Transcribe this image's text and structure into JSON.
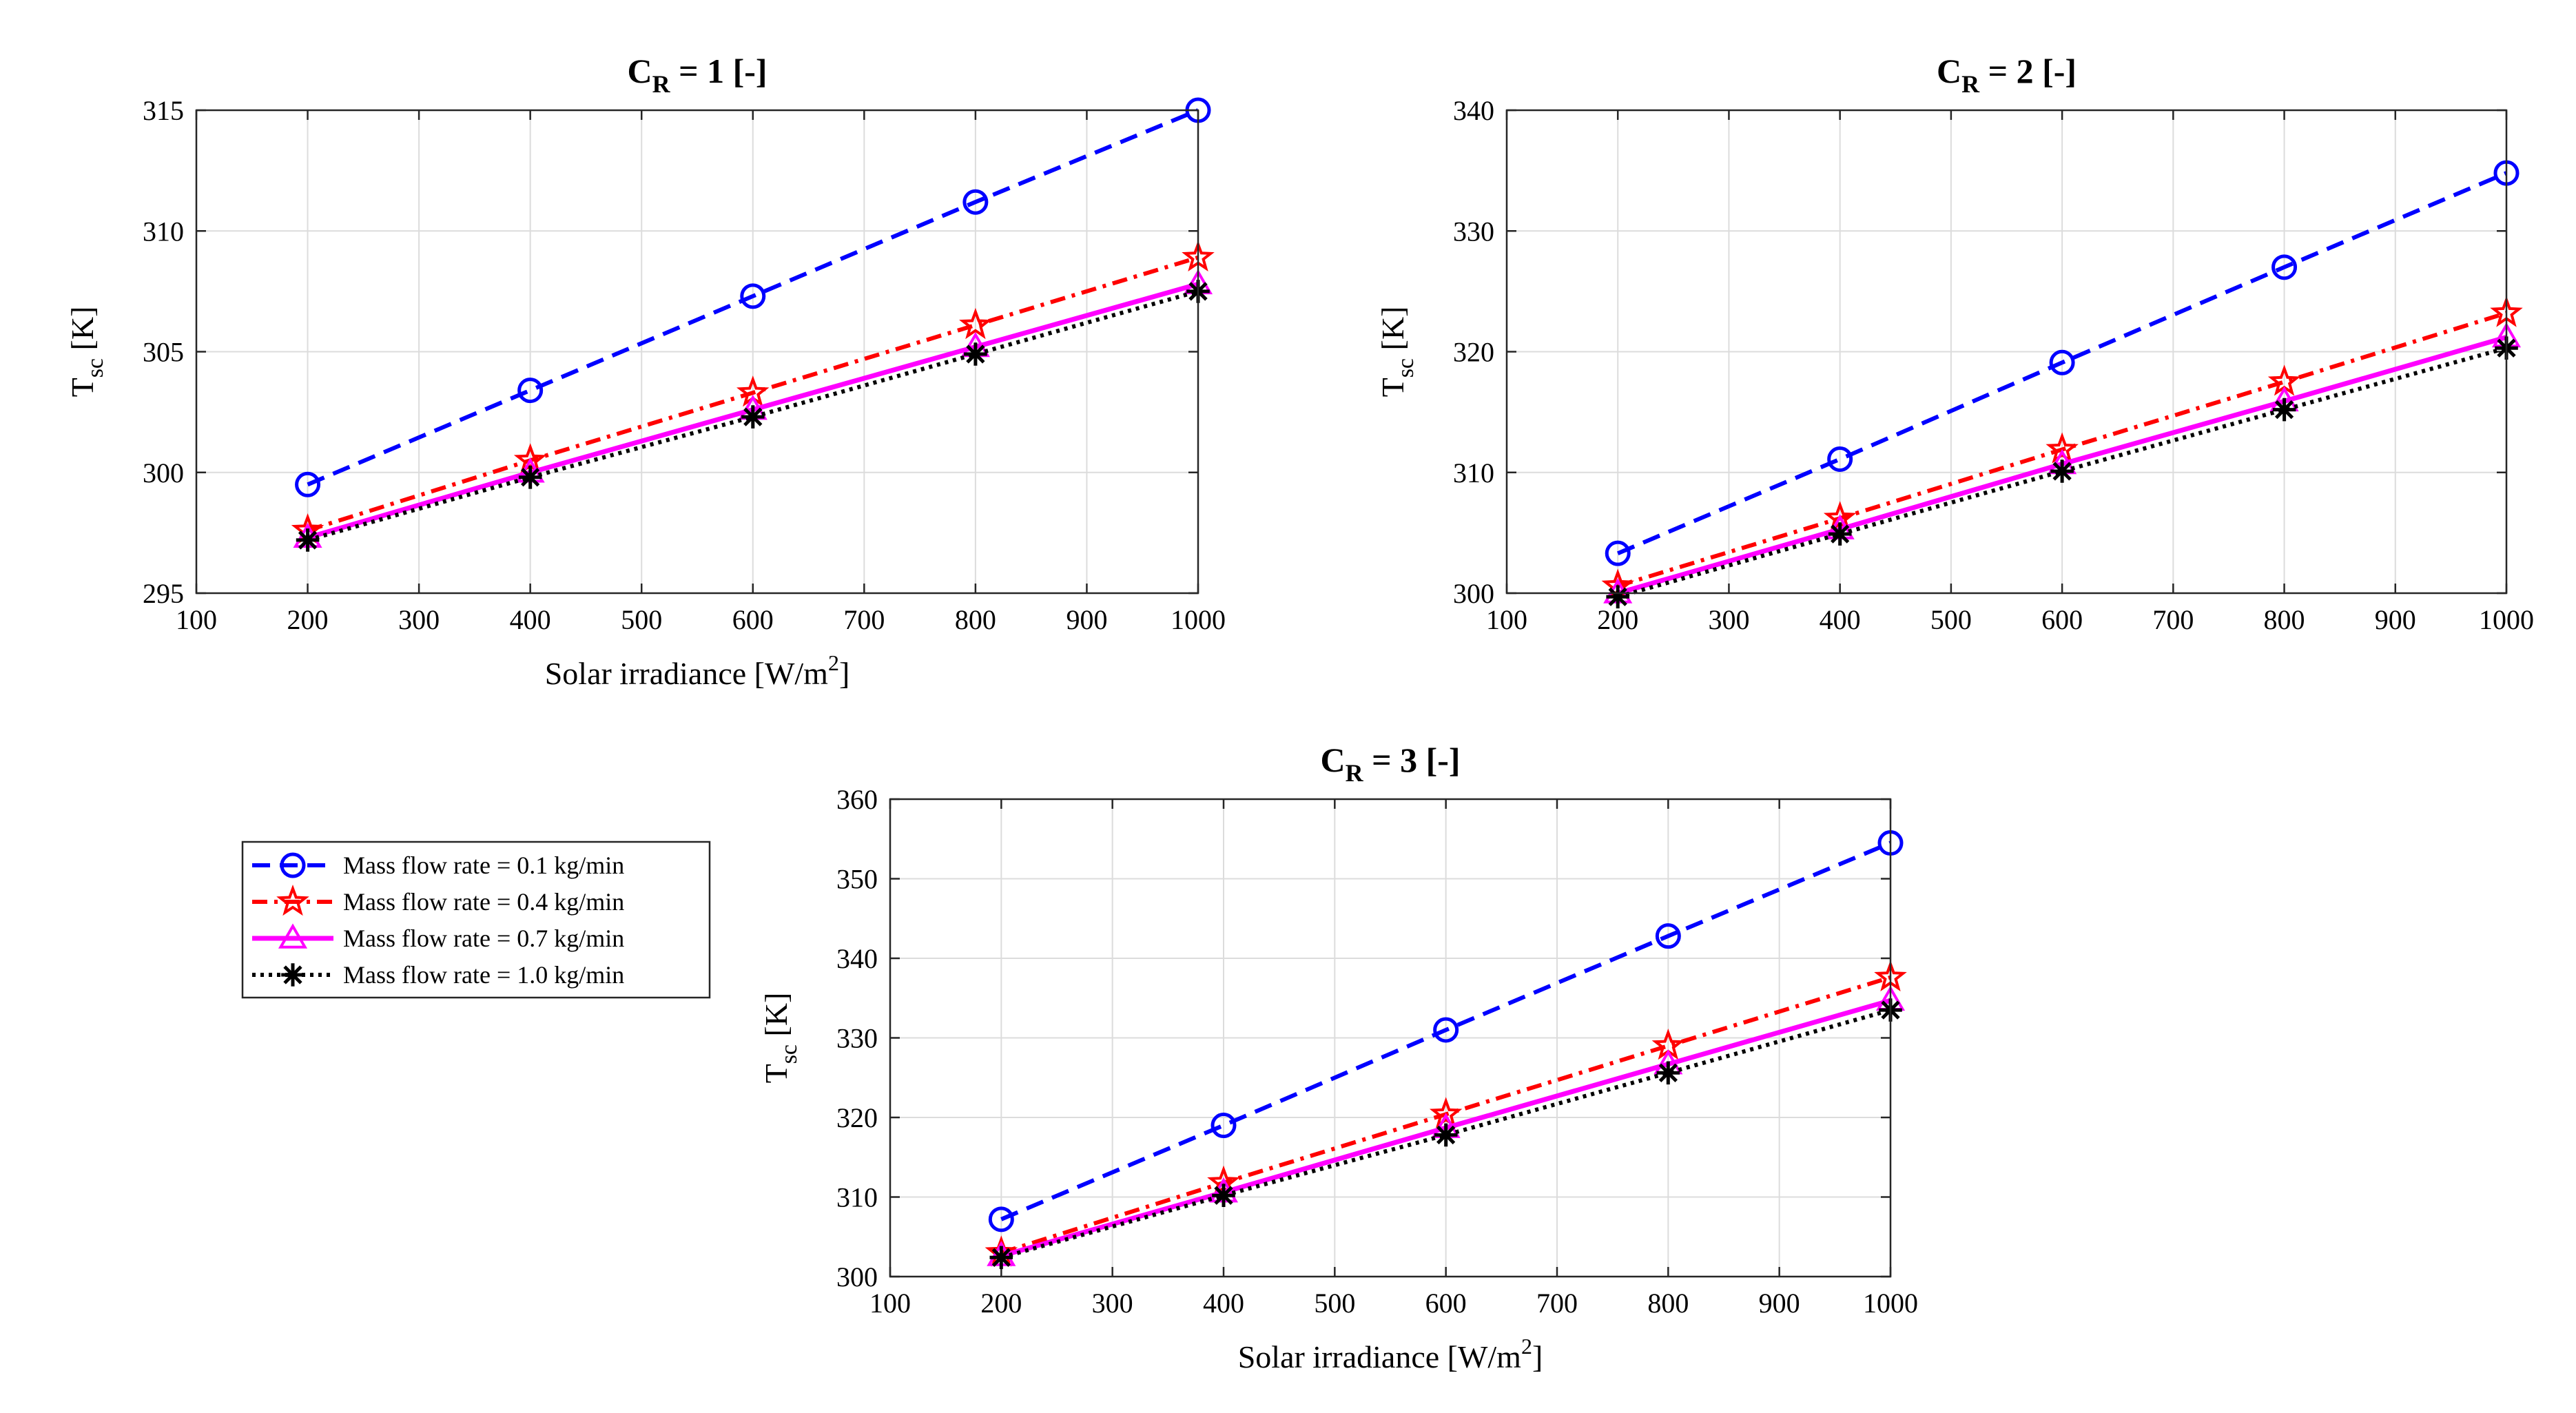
{
  "chart_data": [
    {
      "type": "line",
      "title": {
        "main": "C",
        "sub": "R",
        "rest": " = 1 [-]"
      },
      "xlabel": {
        "main": "Solar irradiance [W/m",
        "sup": "2",
        "rest": "]"
      },
      "ylabel": {
        "main": "T",
        "sub": "sc",
        "rest": " [K]"
      },
      "xlim": [
        100,
        1000
      ],
      "ylim": [
        295,
        315
      ],
      "xticks": [
        100,
        200,
        300,
        400,
        500,
        600,
        700,
        800,
        900,
        1000
      ],
      "yticks": [
        295,
        300,
        305,
        310,
        315
      ],
      "grid": true,
      "x": [
        200,
        400,
        600,
        800,
        1000
      ],
      "series": [
        {
          "name": "Mass flow rate = 0.1 kg/min",
          "values": [
            299.5,
            303.4,
            307.3,
            311.2,
            315.0
          ]
        },
        {
          "name": "Mass flow rate = 0.4 kg/min",
          "values": [
            297.6,
            300.5,
            303.3,
            306.1,
            308.9
          ]
        },
        {
          "name": "Mass flow rate = 0.7 kg/min",
          "values": [
            297.3,
            300.0,
            302.6,
            305.2,
            307.8
          ]
        },
        {
          "name": "Mass flow rate = 1.0 kg/min",
          "values": [
            297.2,
            299.8,
            302.3,
            304.9,
            307.5
          ]
        }
      ]
    },
    {
      "type": "line",
      "title": {
        "main": "C",
        "sub": "R",
        "rest": " = 2 [-]"
      },
      "xlabel": {
        "main": "",
        "sup": "",
        "rest": ""
      },
      "ylabel": {
        "main": "T",
        "sub": "sc",
        "rest": " [K]"
      },
      "xlim": [
        100,
        1000
      ],
      "ylim": [
        300,
        340
      ],
      "xticks": [
        100,
        200,
        300,
        400,
        500,
        600,
        700,
        800,
        900,
        1000
      ],
      "yticks": [
        300,
        310,
        320,
        330,
        340
      ],
      "grid": true,
      "x": [
        200,
        400,
        600,
        800,
        1000
      ],
      "series": [
        {
          "name": "Mass flow rate = 0.1 kg/min",
          "values": [
            303.3,
            311.1,
            319.1,
            327.0,
            334.8
          ]
        },
        {
          "name": "Mass flow rate = 0.4 kg/min",
          "values": [
            300.6,
            306.2,
            311.9,
            317.5,
            323.2
          ]
        },
        {
          "name": "Mass flow rate = 0.7 kg/min",
          "values": [
            300.0,
            305.3,
            310.7,
            315.9,
            321.2
          ]
        },
        {
          "name": "Mass flow rate = 1.0 kg/min",
          "values": [
            299.7,
            304.9,
            310.1,
            315.2,
            320.3
          ]
        }
      ]
    },
    {
      "type": "line",
      "title": {
        "main": "C",
        "sub": "R",
        "rest": " = 3 [-]"
      },
      "xlabel": {
        "main": "Solar irradiance [W/m",
        "sup": "2",
        "rest": "]"
      },
      "ylabel": {
        "main": "T",
        "sub": "sc",
        "rest": " [K]"
      },
      "xlim": [
        100,
        1000
      ],
      "ylim": [
        300,
        360
      ],
      "xticks": [
        100,
        200,
        300,
        400,
        500,
        600,
        700,
        800,
        900,
        1000
      ],
      "yticks": [
        300,
        310,
        320,
        330,
        340,
        350,
        360
      ],
      "grid": true,
      "x": [
        200,
        400,
        600,
        800,
        1000
      ],
      "series": [
        {
          "name": "Mass flow rate = 0.1 kg/min",
          "values": [
            307.2,
            319.0,
            331.0,
            342.8,
            354.5
          ]
        },
        {
          "name": "Mass flow rate = 0.4 kg/min",
          "values": [
            303.0,
            311.8,
            320.4,
            329.0,
            337.6
          ]
        },
        {
          "name": "Mass flow rate = 0.7 kg/min",
          "values": [
            302.6,
            310.6,
            318.7,
            326.7,
            334.7
          ]
        },
        {
          "name": "Mass flow rate = 1.0 kg/min",
          "values": [
            302.4,
            310.2,
            317.8,
            325.6,
            333.5
          ]
        }
      ]
    }
  ],
  "legend": {
    "entries": [
      "Mass flow rate = 0.1 kg/min",
      "Mass flow rate = 0.4 kg/min",
      "Mass flow rate = 0.7 kg/min",
      "Mass flow rate = 1.0 kg/min"
    ]
  },
  "styles": [
    {
      "color": "#0000ff",
      "marker": "circle",
      "dash": "dashed"
    },
    {
      "color": "#ff0000",
      "marker": "star",
      "dash": "dashdot"
    },
    {
      "color": "#ff00ff",
      "marker": "triangle",
      "dash": "solid"
    },
    {
      "color": "#000000",
      "marker": "asterisk",
      "dash": "dotted"
    }
  ]
}
